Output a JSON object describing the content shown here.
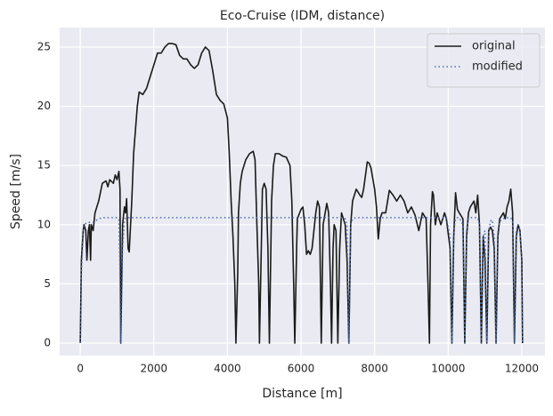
{
  "chart_data": {
    "type": "line",
    "title": "Eco-Cruise (IDM, distance)",
    "xlabel": "Distance [m]",
    "ylabel": "Speed [m/s]",
    "x": [
      0,
      30,
      80,
      100,
      150,
      180,
      220,
      250,
      280,
      300,
      350,
      400,
      500,
      600,
      700,
      750,
      800,
      900,
      950,
      1000,
      1050,
      1080,
      1100,
      1150,
      1200,
      1230,
      1260,
      1300,
      1330,
      1400,
      1450,
      1500,
      1550,
      1600,
      1700,
      1800,
      1900,
      2000,
      2100,
      2200,
      2300,
      2400,
      2500,
      2600,
      2700,
      2800,
      2900,
      3000,
      3100,
      3200,
      3300,
      3400,
      3500,
      3600,
      3700,
      3800,
      3900,
      4000,
      4050,
      4100,
      4150,
      4200,
      4230,
      4280,
      4300,
      4350,
      4400,
      4500,
      4600,
      4700,
      4750,
      4800,
      4850,
      4870,
      4920,
      4950,
      5000,
      5050,
      5100,
      5140,
      5200,
      5250,
      5300,
      5400,
      5500,
      5600,
      5700,
      5750,
      5800,
      5830,
      5880,
      5900,
      6000,
      6050,
      6100,
      6150,
      6200,
      6250,
      6300,
      6400,
      6450,
      6500,
      6550,
      6600,
      6700,
      6750,
      6800,
      6830,
      6870,
      6900,
      6950,
      7000,
      7050,
      7100,
      7200,
      7250,
      7300,
      7350,
      7400,
      7500,
      7600,
      7650,
      7700,
      7800,
      7850,
      7900,
      8000,
      8050,
      8100,
      8150,
      8200,
      8300,
      8400,
      8500,
      8600,
      8700,
      8800,
      8900,
      9000,
      9100,
      9200,
      9300,
      9400,
      9450,
      9490,
      9520,
      9570,
      9600,
      9650,
      9700,
      9800,
      9900,
      9950,
      10050,
      10100,
      10150,
      10200,
      10250,
      10300,
      10400,
      10450,
      10500,
      10550,
      10600,
      10700,
      10750,
      10800,
      10850,
      10900,
      10950,
      11000,
      11050,
      11100,
      11150,
      11200,
      11250,
      11300,
      11350,
      11400,
      11500,
      11550,
      11600,
      11650,
      11700,
      11750,
      11800,
      11850,
      11900,
      11950,
      12000,
      12020
    ],
    "series": [
      {
        "name": "original",
        "color": "#1a1a1a",
        "style": "solid",
        "values": [
          0,
          7,
          9.5,
          10,
          9.5,
          7,
          9.5,
          10,
          7,
          10,
          9.5,
          11,
          12,
          13.5,
          13.7,
          13.2,
          13.8,
          13.5,
          14.2,
          13.8,
          14.5,
          13,
          0,
          10,
          11.5,
          11,
          12.2,
          8,
          7.7,
          12,
          16,
          18,
          20,
          21.2,
          21,
          21.5,
          22.5,
          23.5,
          24.5,
          24.5,
          25,
          25.3,
          25.3,
          25.2,
          24.3,
          24,
          24,
          23.5,
          23.2,
          23.5,
          24.5,
          25,
          24.7,
          23,
          21,
          20.5,
          20.2,
          19,
          16,
          12,
          9,
          5,
          0,
          6,
          11,
          13.5,
          14.5,
          15.5,
          16,
          16.2,
          15.5,
          10,
          5,
          0,
          8,
          13,
          13.5,
          13,
          8,
          0,
          12,
          15,
          16,
          16,
          15.8,
          15.7,
          15,
          12,
          5,
          0,
          8,
          10.5,
          11.3,
          11.5,
          10,
          7.5,
          7.8,
          7.5,
          8,
          11,
          12,
          11.5,
          0,
          10,
          11.8,
          11,
          5,
          0,
          8,
          10,
          9.5,
          0,
          8,
          11,
          10,
          7,
          0,
          10,
          12,
          13,
          12.5,
          12.3,
          13,
          15.3,
          15.2,
          14.8,
          13,
          11.5,
          8.8,
          10.5,
          11,
          11,
          12.9,
          12.5,
          12,
          12.5,
          12,
          11,
          11.5,
          10.8,
          9.5,
          11,
          10.5,
          5,
          0,
          10,
          12.8,
          12.5,
          10,
          11,
          10,
          11,
          10.5,
          8,
          0,
          9,
          12.7,
          11.3,
          11,
          10.5,
          0,
          9,
          11,
          11.5,
          12,
          11,
          12.5,
          10,
          0,
          9,
          7,
          0,
          9.5,
          9.8,
          9.5,
          8,
          0,
          9,
          10.5,
          11,
          10.5,
          11.5,
          12,
          13,
          11,
          0,
          9,
          10,
          9.5,
          7,
          0
        ]
      },
      {
        "name": "modified",
        "color": "#4c72b0",
        "style": "dotted",
        "values": [
          0,
          6,
          9.5,
          10,
          10.1,
          10.1,
          10.2,
          10.2,
          10.2,
          10.2,
          10.2,
          10.3,
          10.5,
          10.6,
          10.6,
          10.6,
          10.6,
          10.6,
          10.6,
          10.6,
          10.4,
          6,
          0,
          8,
          10.3,
          10.6,
          10.6,
          10.6,
          10.6,
          10.6,
          10.6,
          10.6,
          10.6,
          10.6,
          10.6,
          10.6,
          10.6,
          10.6,
          10.6,
          10.6,
          10.6,
          10.6,
          10.6,
          10.6,
          10.6,
          10.6,
          10.6,
          10.6,
          10.6,
          10.6,
          10.6,
          10.6,
          10.6,
          10.6,
          10.6,
          10.6,
          10.6,
          10.6,
          10.6,
          10.6,
          10.6,
          10.6,
          10.6,
          10.6,
          10.6,
          10.6,
          10.6,
          10.6,
          10.6,
          10.6,
          10.6,
          10.6,
          10.6,
          10.6,
          10.6,
          10.6,
          10.6,
          10.6,
          10.6,
          10.6,
          10.6,
          10.6,
          10.6,
          10.6,
          10.6,
          10.6,
          10.6,
          10.6,
          10.6,
          10.6,
          10.6,
          10.6,
          10.6,
          10.6,
          10.6,
          10.6,
          10.6,
          10.6,
          10.6,
          10.6,
          10.6,
          10.6,
          10.6,
          10.6,
          10.6,
          10.6,
          10.6,
          10.6,
          10.6,
          10.6,
          10.6,
          10.6,
          10.6,
          10.6,
          10.5,
          10,
          0,
          10,
          10.5,
          10.6,
          10.6,
          10.6,
          10.6,
          10.6,
          10.6,
          10.6,
          10.6,
          10.6,
          10.6,
          10.6,
          10.6,
          10.6,
          10.6,
          10.6,
          10.6,
          10.6,
          10.6,
          10.6,
          10.6,
          10.6,
          10.6,
          10.6,
          10.6,
          10.6,
          10.6,
          10.6,
          10.6,
          10.6,
          10.6,
          10.6,
          10.6,
          10.6,
          10.6,
          9,
          0,
          9.5,
          10.5,
          10.6,
          10.6,
          10,
          0,
          9.5,
          10.5,
          10.6,
          10.6,
          10.6,
          10.6,
          10,
          0,
          9,
          9.5,
          0,
          9.5,
          10.3,
          10.4,
          9,
          0,
          9.5,
          10.3,
          10.5,
          10.6,
          10.6,
          10.6,
          10.6,
          10.3,
          0,
          9.5,
          10,
          9.5,
          7,
          0
        ]
      }
    ],
    "xlim": [
      -560,
      12630
    ],
    "ylim": [
      -1.05,
      26.65
    ],
    "xticks": [
      0,
      2000,
      4000,
      6000,
      8000,
      10000,
      12000
    ],
    "yticks": [
      0,
      5,
      10,
      15,
      20,
      25
    ],
    "grid": true,
    "legend": "upper right"
  }
}
